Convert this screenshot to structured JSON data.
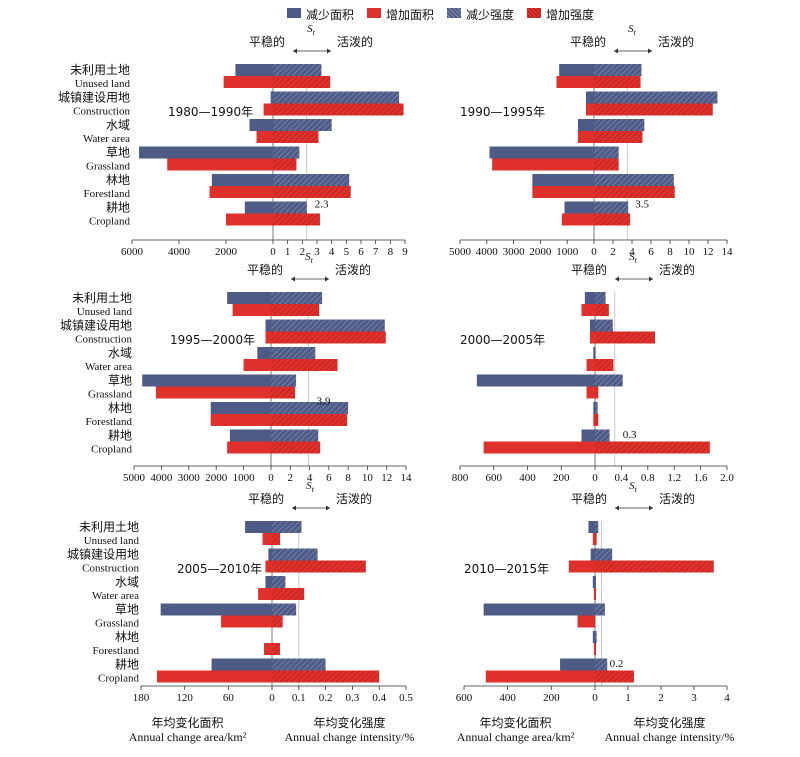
{
  "legend": [
    {
      "label": "减少面积",
      "color": "#4e5b86",
      "hatch": false
    },
    {
      "label": "增加面积",
      "color": "#e0302b",
      "hatch": false
    },
    {
      "label": "减少强度",
      "color": "#4e5b86",
      "hatch": true
    },
    {
      "label": "增加强度",
      "color": "#e0302b",
      "hatch": true
    }
  ],
  "categories": [
    {
      "zh": "未利用土地",
      "en": "Unused land"
    },
    {
      "zh": "城镇建设用地",
      "en": "Construction"
    },
    {
      "zh": "水域",
      "en": "Water area"
    },
    {
      "zh": "草地",
      "en": "Grassland"
    },
    {
      "zh": "林地",
      "en": "Forestland"
    },
    {
      "zh": "耕地",
      "en": "Cropland"
    }
  ],
  "st_label": "S",
  "st_sub": "t",
  "stable_label": "平稳的",
  "active_label": "活泼的",
  "colors": {
    "decrease": "#4e5b86",
    "increase": "#e0302b"
  },
  "footer": {
    "area_zh": "年均变化面积",
    "area_en": "Annual change area/km²",
    "int_zh": "年均变化强度",
    "int_en": "Annual change intensity/%"
  },
  "chart_data": [
    {
      "type": "bar",
      "period": "1980—1990年",
      "st_value": 2.3,
      "st_label": "2.3",
      "area_ticks": [
        "6000",
        "4000",
        "2000",
        "0"
      ],
      "area_max": 6000,
      "intensity_ticks": [
        "1",
        "2",
        "3",
        "4",
        "5",
        "6",
        "7",
        "8",
        "9"
      ],
      "intensity_max": 9,
      "area_decrease": [
        1600,
        100,
        1000,
        5700,
        2600,
        1200
      ],
      "area_increase": [
        2100,
        400,
        700,
        4500,
        2700,
        2000
      ],
      "intensity_decrease": [
        3.3,
        8.6,
        4.0,
        1.8,
        5.2,
        2.3
      ],
      "intensity_increase": [
        3.9,
        8.9,
        3.1,
        1.6,
        5.3,
        3.2
      ]
    },
    {
      "type": "bar",
      "period": "1990—1995年",
      "st_value": 3.5,
      "st_label": "3.5",
      "area_ticks": [
        "5000",
        "4000",
        "3000",
        "2000",
        "1000",
        "0"
      ],
      "area_max": 5000,
      "intensity_ticks": [
        "2",
        "4",
        "6",
        "8",
        "10",
        "12",
        "14"
      ],
      "intensity_max": 14,
      "area_decrease": [
        1300,
        300,
        600,
        3900,
        2300,
        1100
      ],
      "area_increase": [
        1400,
        300,
        600,
        3800,
        2300,
        1200
      ],
      "intensity_decrease": [
        5.0,
        13.0,
        5.3,
        2.6,
        8.4,
        3.6
      ],
      "intensity_increase": [
        4.9,
        12.5,
        5.1,
        2.6,
        8.5,
        3.8
      ]
    },
    {
      "type": "bar",
      "period": "1995—2000年",
      "st_value": 3.9,
      "st_label": "3.9",
      "area_ticks": [
        "5000",
        "4000",
        "3000",
        "2000",
        "1000",
        "0"
      ],
      "area_max": 5000,
      "intensity_ticks": [
        "2",
        "4",
        "6",
        "8",
        "10",
        "12",
        "14"
      ],
      "intensity_max": 14,
      "area_decrease": [
        1600,
        200,
        500,
        4700,
        2200,
        1500
      ],
      "area_increase": [
        1400,
        200,
        1000,
        4200,
        2200,
        1600
      ],
      "intensity_decrease": [
        5.3,
        11.8,
        4.6,
        2.6,
        8.0,
        4.9
      ],
      "intensity_increase": [
        5.0,
        11.9,
        6.9,
        2.5,
        7.9,
        5.1
      ]
    },
    {
      "type": "bar",
      "period": "2000—2005年",
      "st_value": 0.3,
      "st_label": "0.3",
      "area_ticks": [
        "800",
        "600",
        "400",
        "200",
        "0"
      ],
      "area_max": 800,
      "intensity_ticks": [
        "0.4",
        "0.8",
        "1.2",
        "1.6",
        "2.0"
      ],
      "intensity_max": 2.0,
      "area_decrease": [
        60,
        30,
        10,
        700,
        10,
        80
      ],
      "area_increase": [
        80,
        30,
        50,
        50,
        10,
        660
      ],
      "intensity_decrease": [
        0.16,
        0.27,
        0.01,
        0.42,
        0.04,
        0.22
      ],
      "intensity_increase": [
        0.21,
        0.91,
        0.28,
        0.05,
        0.05,
        1.74
      ]
    },
    {
      "type": "bar",
      "period": "2005—2010年",
      "st_value": 0.1,
      "st_label": "",
      "area_ticks": [
        "180",
        "120",
        "60",
        "0"
      ],
      "area_max": 180,
      "intensity_ticks": [
        "0.1",
        "0.2",
        "0.3",
        "0.4",
        "0.5"
      ],
      "intensity_max": 0.5,
      "area_decrease": [
        37,
        5,
        9,
        153,
        0,
        83
      ],
      "area_increase": [
        13,
        9,
        19,
        70,
        11,
        158
      ],
      "intensity_decrease": [
        0.11,
        0.17,
        0.05,
        0.09,
        0,
        0.2
      ],
      "intensity_increase": [
        0.03,
        0.35,
        0.12,
        0.04,
        0.03,
        0.4
      ]
    },
    {
      "type": "bar",
      "period": "2010—2015年",
      "st_value": 0.2,
      "st_label": "0.2",
      "area_ticks": [
        "600",
        "400",
        "200",
        "0"
      ],
      "area_max": 600,
      "intensity_ticks": [
        "1",
        "2",
        "3",
        "4"
      ],
      "intensity_max": 4,
      "area_decrease": [
        30,
        20,
        10,
        510,
        10,
        160
      ],
      "area_increase": [
        10,
        120,
        5,
        80,
        5,
        500
      ],
      "intensity_decrease": [
        0.1,
        0.52,
        0.03,
        0.3,
        0.05,
        0.37
      ],
      "intensity_increase": [
        0.05,
        3.6,
        0.03,
        0.01,
        0.03,
        1.18
      ]
    }
  ]
}
